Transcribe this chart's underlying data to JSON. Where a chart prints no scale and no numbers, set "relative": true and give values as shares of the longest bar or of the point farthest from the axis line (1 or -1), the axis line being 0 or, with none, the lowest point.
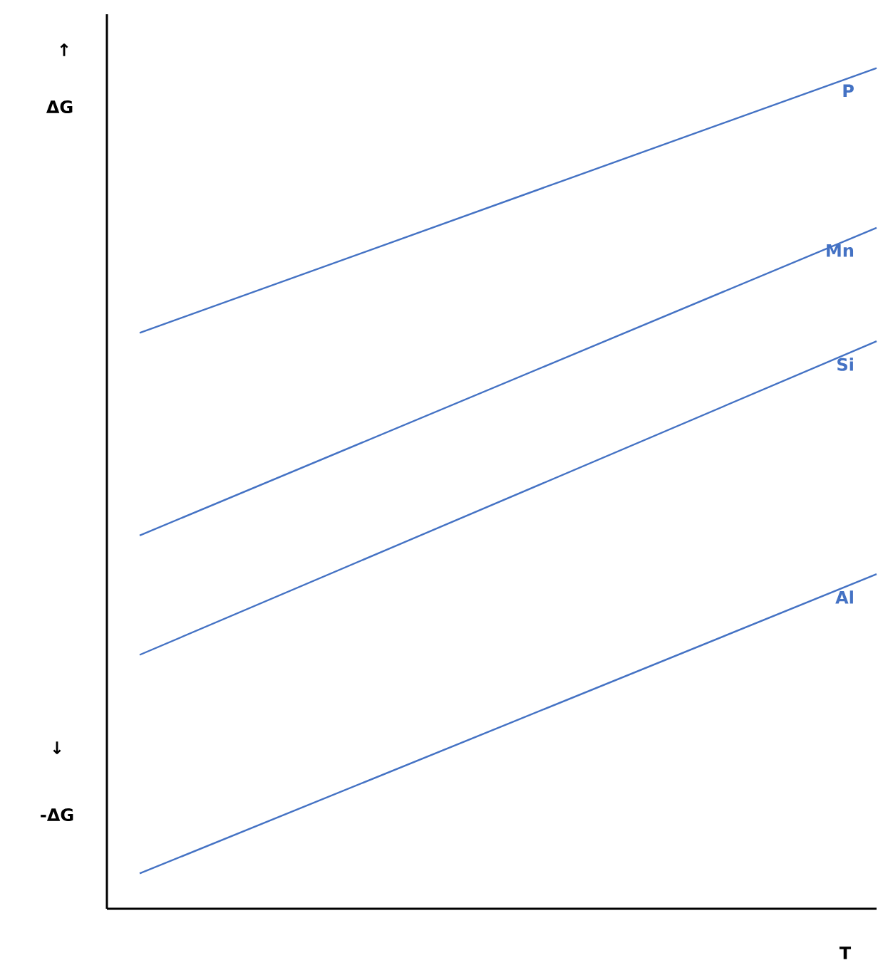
{
  "chart_data": {
    "type": "line",
    "relative": true,
    "categories": [
      null,
      null
    ],
    "xlabel": "T",
    "annotations": [
      "↑",
      "ΔG",
      "↓",
      "-ΔG"
    ],
    "series": [
      {
        "name": "P",
        "color": "#4472c4",
        "values": [
          0.685,
          1.0
        ]
      },
      {
        "name": "Mn",
        "color": "#4472c4",
        "values": [
          0.444,
          0.81
        ]
      },
      {
        "name": "Si",
        "color": "#4472c4",
        "values": [
          0.302,
          0.675
        ]
      },
      {
        "name": "Al",
        "color": "#4472c4",
        "values": [
          0.042,
          0.398
        ]
      }
    ]
  }
}
